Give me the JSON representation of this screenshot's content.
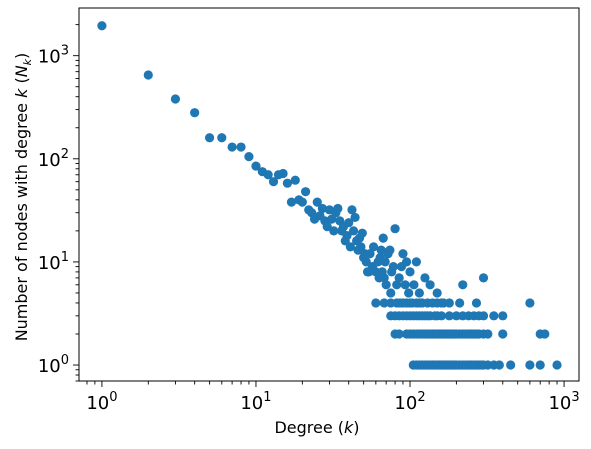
{
  "chart_data": {
    "type": "scatter",
    "title": "",
    "xlabel_text": "Degree (",
    "xlabel_var": "k",
    "xlabel_close": ")",
    "ylabel_text": "Number of nodes with degree ",
    "ylabel_var": "k",
    "ylabel_paren_open": " (",
    "ylabel_sub_base": "N",
    "ylabel_sub": "k",
    "ylabel_close": ")",
    "xscale": "log",
    "yscale": "log",
    "xlim": [
      0.71,
      1250
    ],
    "ylim": [
      0.7,
      2900
    ],
    "grid": false,
    "legend": "none",
    "color": "#1f77b4",
    "xticks": [
      {
        "value": 1,
        "base": "10",
        "exp": "0"
      },
      {
        "value": 10,
        "base": "10",
        "exp": "1"
      },
      {
        "value": 100,
        "base": "10",
        "exp": "2"
      },
      {
        "value": 1000,
        "base": "10",
        "exp": "3"
      }
    ],
    "yticks": [
      {
        "value": 1,
        "base": "10",
        "exp": "0"
      },
      {
        "value": 10,
        "base": "10",
        "exp": "1"
      },
      {
        "value": 100,
        "base": "10",
        "exp": "2"
      },
      {
        "value": 1000,
        "base": "10",
        "exp": "3"
      }
    ],
    "points": [
      [
        1,
        1950
      ],
      [
        2,
        650
      ],
      [
        3,
        380
      ],
      [
        4,
        280
      ],
      [
        5,
        160
      ],
      [
        6,
        160
      ],
      [
        7,
        130
      ],
      [
        8,
        130
      ],
      [
        9,
        105
      ],
      [
        10,
        85
      ],
      [
        11,
        75
      ],
      [
        12,
        70
      ],
      [
        13,
        60
      ],
      [
        14,
        70
      ],
      [
        15,
        72
      ],
      [
        16,
        58
      ],
      [
        18,
        62
      ],
      [
        17,
        38
      ],
      [
        19,
        40
      ],
      [
        20,
        38
      ],
      [
        21,
        48
      ],
      [
        22,
        32
      ],
      [
        23,
        30
      ],
      [
        24,
        26
      ],
      [
        25,
        38
      ],
      [
        26,
        28
      ],
      [
        27,
        33
      ],
      [
        28,
        25
      ],
      [
        29,
        22
      ],
      [
        30,
        32
      ],
      [
        31,
        26
      ],
      [
        32,
        20
      ],
      [
        33,
        30
      ],
      [
        34,
        33
      ],
      [
        35,
        25
      ],
      [
        36,
        20
      ],
      [
        37,
        22
      ],
      [
        38,
        16
      ],
      [
        39,
        18
      ],
      [
        40,
        24
      ],
      [
        41,
        14
      ],
      [
        42,
        32
      ],
      [
        43,
        20
      ],
      [
        44,
        27
      ],
      [
        45,
        16
      ],
      [
        46,
        13
      ],
      [
        47,
        17
      ],
      [
        48,
        14
      ],
      [
        49,
        19
      ],
      [
        50,
        11
      ],
      [
        51,
        12
      ],
      [
        52,
        10
      ],
      [
        53,
        8
      ],
      [
        54,
        8
      ],
      [
        55,
        12
      ],
      [
        57,
        9
      ],
      [
        58,
        14
      ],
      [
        60,
        8
      ],
      [
        62,
        10
      ],
      [
        63,
        7
      ],
      [
        64,
        11
      ],
      [
        65,
        13
      ],
      [
        66,
        8
      ],
      [
        67,
        17
      ],
      [
        68,
        7
      ],
      [
        69,
        10
      ],
      [
        70,
        6
      ],
      [
        72,
        12
      ],
      [
        74,
        13
      ],
      [
        75,
        5
      ],
      [
        76,
        8
      ],
      [
        78,
        9
      ],
      [
        80,
        21
      ],
      [
        82,
        6
      ],
      [
        85,
        7
      ],
      [
        88,
        9
      ],
      [
        90,
        12
      ],
      [
        93,
        6
      ],
      [
        95,
        10
      ],
      [
        98,
        5
      ],
      [
        100,
        8
      ],
      [
        103,
        4
      ],
      [
        106,
        6
      ],
      [
        110,
        10
      ],
      [
        115,
        5
      ],
      [
        118,
        4
      ],
      [
        125,
        7
      ],
      [
        135,
        6
      ],
      [
        150,
        5
      ],
      [
        165,
        4
      ],
      [
        60,
        4
      ],
      [
        68,
        4
      ],
      [
        75,
        4
      ],
      [
        82,
        4
      ],
      [
        86,
        4
      ],
      [
        90,
        4
      ],
      [
        95,
        4
      ],
      [
        100,
        4
      ],
      [
        110,
        4
      ],
      [
        115,
        4
      ],
      [
        120,
        4
      ],
      [
        130,
        4
      ],
      [
        140,
        4
      ],
      [
        150,
        4
      ],
      [
        160,
        4
      ],
      [
        180,
        4
      ],
      [
        210,
        4
      ],
      [
        270,
        4
      ],
      [
        600,
        4
      ],
      [
        75,
        3
      ],
      [
        80,
        3
      ],
      [
        85,
        3
      ],
      [
        90,
        3
      ],
      [
        95,
        3
      ],
      [
        100,
        3
      ],
      [
        105,
        3
      ],
      [
        110,
        3
      ],
      [
        115,
        3
      ],
      [
        120,
        3
      ],
      [
        125,
        3
      ],
      [
        130,
        3
      ],
      [
        135,
        3
      ],
      [
        145,
        3
      ],
      [
        150,
        3
      ],
      [
        160,
        3
      ],
      [
        180,
        3
      ],
      [
        200,
        3
      ],
      [
        220,
        3
      ],
      [
        240,
        3
      ],
      [
        260,
        3
      ],
      [
        280,
        3
      ],
      [
        300,
        3
      ],
      [
        350,
        3
      ],
      [
        400,
        3
      ],
      [
        80,
        2
      ],
      [
        85,
        2
      ],
      [
        95,
        2
      ],
      [
        100,
        2
      ],
      [
        105,
        2
      ],
      [
        110,
        2
      ],
      [
        115,
        2
      ],
      [
        120,
        2
      ],
      [
        125,
        2
      ],
      [
        130,
        2
      ],
      [
        135,
        2
      ],
      [
        140,
        2
      ],
      [
        145,
        2
      ],
      [
        150,
        2
      ],
      [
        155,
        2
      ],
      [
        160,
        2
      ],
      [
        165,
        2
      ],
      [
        170,
        2
      ],
      [
        175,
        2
      ],
      [
        180,
        2
      ],
      [
        185,
        2
      ],
      [
        190,
        2
      ],
      [
        195,
        2
      ],
      [
        200,
        2
      ],
      [
        210,
        2
      ],
      [
        220,
        2
      ],
      [
        230,
        2
      ],
      [
        240,
        2
      ],
      [
        250,
        2
      ],
      [
        260,
        2
      ],
      [
        270,
        2
      ],
      [
        280,
        2
      ],
      [
        300,
        2
      ],
      [
        320,
        2
      ],
      [
        400,
        2
      ],
      [
        700,
        2
      ],
      [
        750,
        2
      ],
      [
        220,
        6
      ],
      [
        300,
        7
      ],
      [
        105,
        1
      ],
      [
        110,
        1
      ],
      [
        115,
        1
      ],
      [
        120,
        1
      ],
      [
        125,
        1
      ],
      [
        130,
        1
      ],
      [
        135,
        1
      ],
      [
        140,
        1
      ],
      [
        145,
        1
      ],
      [
        150,
        1
      ],
      [
        155,
        1
      ],
      [
        160,
        1
      ],
      [
        165,
        1
      ],
      [
        170,
        1
      ],
      [
        175,
        1
      ],
      [
        180,
        1
      ],
      [
        185,
        1
      ],
      [
        190,
        1
      ],
      [
        195,
        1
      ],
      [
        200,
        1
      ],
      [
        210,
        1
      ],
      [
        220,
        1
      ],
      [
        230,
        1
      ],
      [
        240,
        1
      ],
      [
        250,
        1
      ],
      [
        260,
        1
      ],
      [
        270,
        1
      ],
      [
        280,
        1
      ],
      [
        290,
        1
      ],
      [
        300,
        1
      ],
      [
        320,
        1
      ],
      [
        350,
        1
      ],
      [
        380,
        1
      ],
      [
        450,
        1
      ],
      [
        600,
        1
      ],
      [
        700,
        1
      ],
      [
        900,
        1
      ]
    ]
  }
}
